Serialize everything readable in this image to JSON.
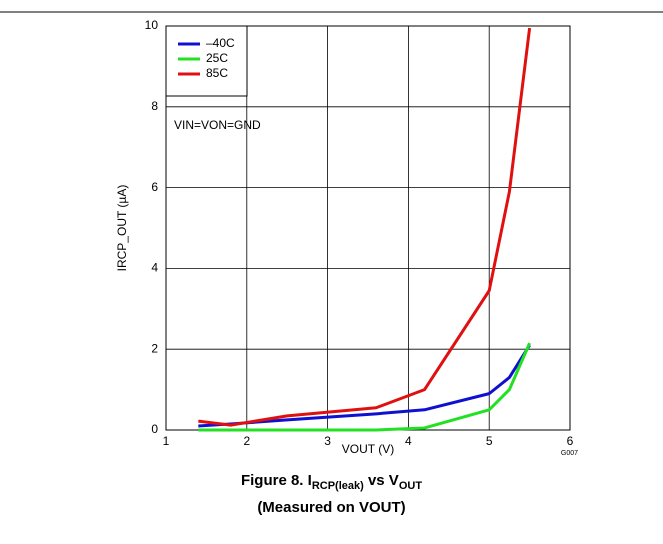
{
  "chart_data": {
    "type": "line",
    "x": [
      1.4,
      1.8,
      2.5,
      3.6,
      4.2,
      5.0,
      5.25,
      5.5
    ],
    "series": [
      {
        "name": "–40C",
        "color": "#1010d0",
        "values": [
          0.1,
          0.15,
          0.25,
          0.4,
          0.5,
          0.9,
          1.3,
          2.1
        ]
      },
      {
        "name": "25C",
        "color": "#22e022",
        "values": [
          0,
          0,
          0,
          0,
          0.05,
          0.5,
          1.0,
          2.15
        ]
      },
      {
        "name": "85C",
        "color": "#e01010",
        "values": [
          0.22,
          0.12,
          0.35,
          0.55,
          1.0,
          3.45,
          5.9,
          9.95
        ]
      }
    ],
    "xlim": [
      1,
      6
    ],
    "xticks": [
      1,
      2,
      3,
      4,
      5,
      6
    ],
    "ylim": [
      0,
      10
    ],
    "yticks": [
      0,
      2,
      4,
      6,
      8,
      10
    ],
    "grid": true,
    "legend": "upper left",
    "xlabel": "VOUT (V)",
    "ylabel": "IRCP_OUT (µA)",
    "annotation": "VIN=VON=GND",
    "figure_id": "G007",
    "caption": {
      "a": "Figure 8. I",
      "b": "RCP(leak)",
      "c": " vs V",
      "d": "OUT",
      "line2": "(Measured on VOUT)"
    }
  }
}
